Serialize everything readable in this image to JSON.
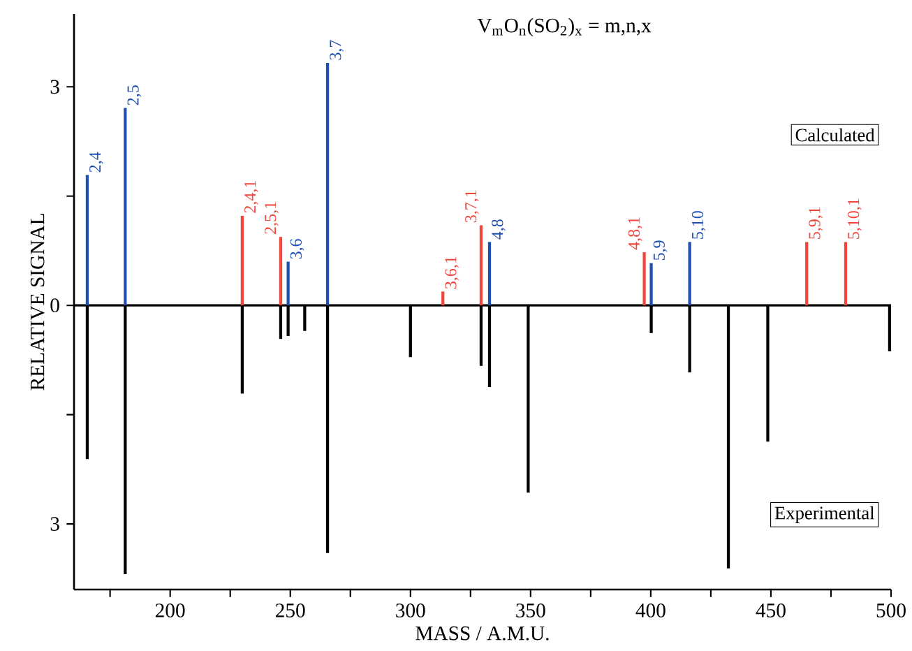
{
  "chart_data": {
    "type": "bar",
    "title": "V$_{m}$O$_{n}$(SO$_{2}$)$_{x}$ = m,n,x",
    "xlabel": "MASS / A.M.U.",
    "ylabel": "RELATIVE SIGNAL",
    "xlim": [
      160,
      500
    ],
    "ylim": [
      -3.9,
      4.0
    ],
    "xticks": [
      {
        "value": 175,
        "label": null
      },
      200,
      {
        "value": 225,
        "label": null
      },
      250,
      {
        "value": 275,
        "label": null
      },
      300,
      {
        "value": 325,
        "label": null
      },
      350,
      {
        "value": 375,
        "label": null
      },
      400,
      {
        "value": 425,
        "label": null
      },
      450,
      {
        "value": 475,
        "label": null
      },
      500
    ],
    "yticks": [
      {
        "value": -3,
        "label": "3"
      },
      {
        "value": -1.5,
        "label": null
      },
      0,
      {
        "value": 1.5,
        "label": null
      },
      3
    ],
    "series": [
      {
        "color": "#1f4fb0",
        "x": [
          165.5,
          181.3,
          249.1,
          265.5,
          332.9,
          400.2,
          416.2
        ],
        "values": [
          1.79,
          2.71,
          0.6,
          3.33,
          0.87,
          0.58,
          0.87
        ]
      },
      {
        "color": "#f0463c",
        "x": [
          230,
          246,
          313.5,
          329.4,
          397.3,
          464.9,
          481.1
        ],
        "values": [
          1.23,
          0.94,
          0.19,
          1.1,
          0.73,
          0.87,
          0.87
        ]
      },
      {
        "color": "#000000",
        "x": [
          165.5,
          181.3,
          230,
          246,
          249.1,
          256,
          265.5,
          300,
          329.4,
          332.9,
          349,
          400.2,
          416.2,
          432.3,
          448.7,
          499.4
        ],
        "values": [
          -2.11,
          -3.69,
          -1.21,
          -0.46,
          -0.42,
          -0.35,
          -3.4,
          -0.71,
          -0.83,
          -1.12,
          -2.57,
          -0.38,
          -0.92,
          -3.61,
          -1.87,
          -0.63
        ]
      }
    ],
    "ref_lines": [
      {
        "axis": "y",
        "value": 0,
        "color": "#000000"
      }
    ],
    "annotations": [
      {
        "text": "2,4",
        "x": 165.5,
        "y": 1.79
      },
      {
        "text": "2,5",
        "x": 181.3,
        "y": 2.71
      },
      {
        "text": "3,6",
        "x": 249.1,
        "y": 0.6
      },
      {
        "text": "3,7",
        "x": 265.5,
        "y": 3.33
      },
      {
        "text": "4,8",
        "x": 332.9,
        "y": 0.87
      },
      {
        "text": "5,9",
        "x": 400.2,
        "y": 0.58
      },
      {
        "text": "5,10",
        "x": 416.2,
        "y": 0.87
      },
      {
        "text": "2,4,1",
        "x": 230,
        "y": 1.23
      },
      {
        "text": "2,5,1",
        "x": 246,
        "y": 0.94
      },
      {
        "text": "3,6,1",
        "x": 313.5,
        "y": 0.19
      },
      {
        "text": "3,7,1",
        "x": 329.4,
        "y": 1.1
      },
      {
        "text": "4,8,1",
        "x": 397.3,
        "y": 0.73
      },
      {
        "text": "5,9,1",
        "x": 464.9,
        "y": 0.87
      },
      {
        "text": "5,10,1",
        "x": 481.1,
        "y": 0.87
      },
      "Calculated",
      "Experimental"
    ]
  }
}
